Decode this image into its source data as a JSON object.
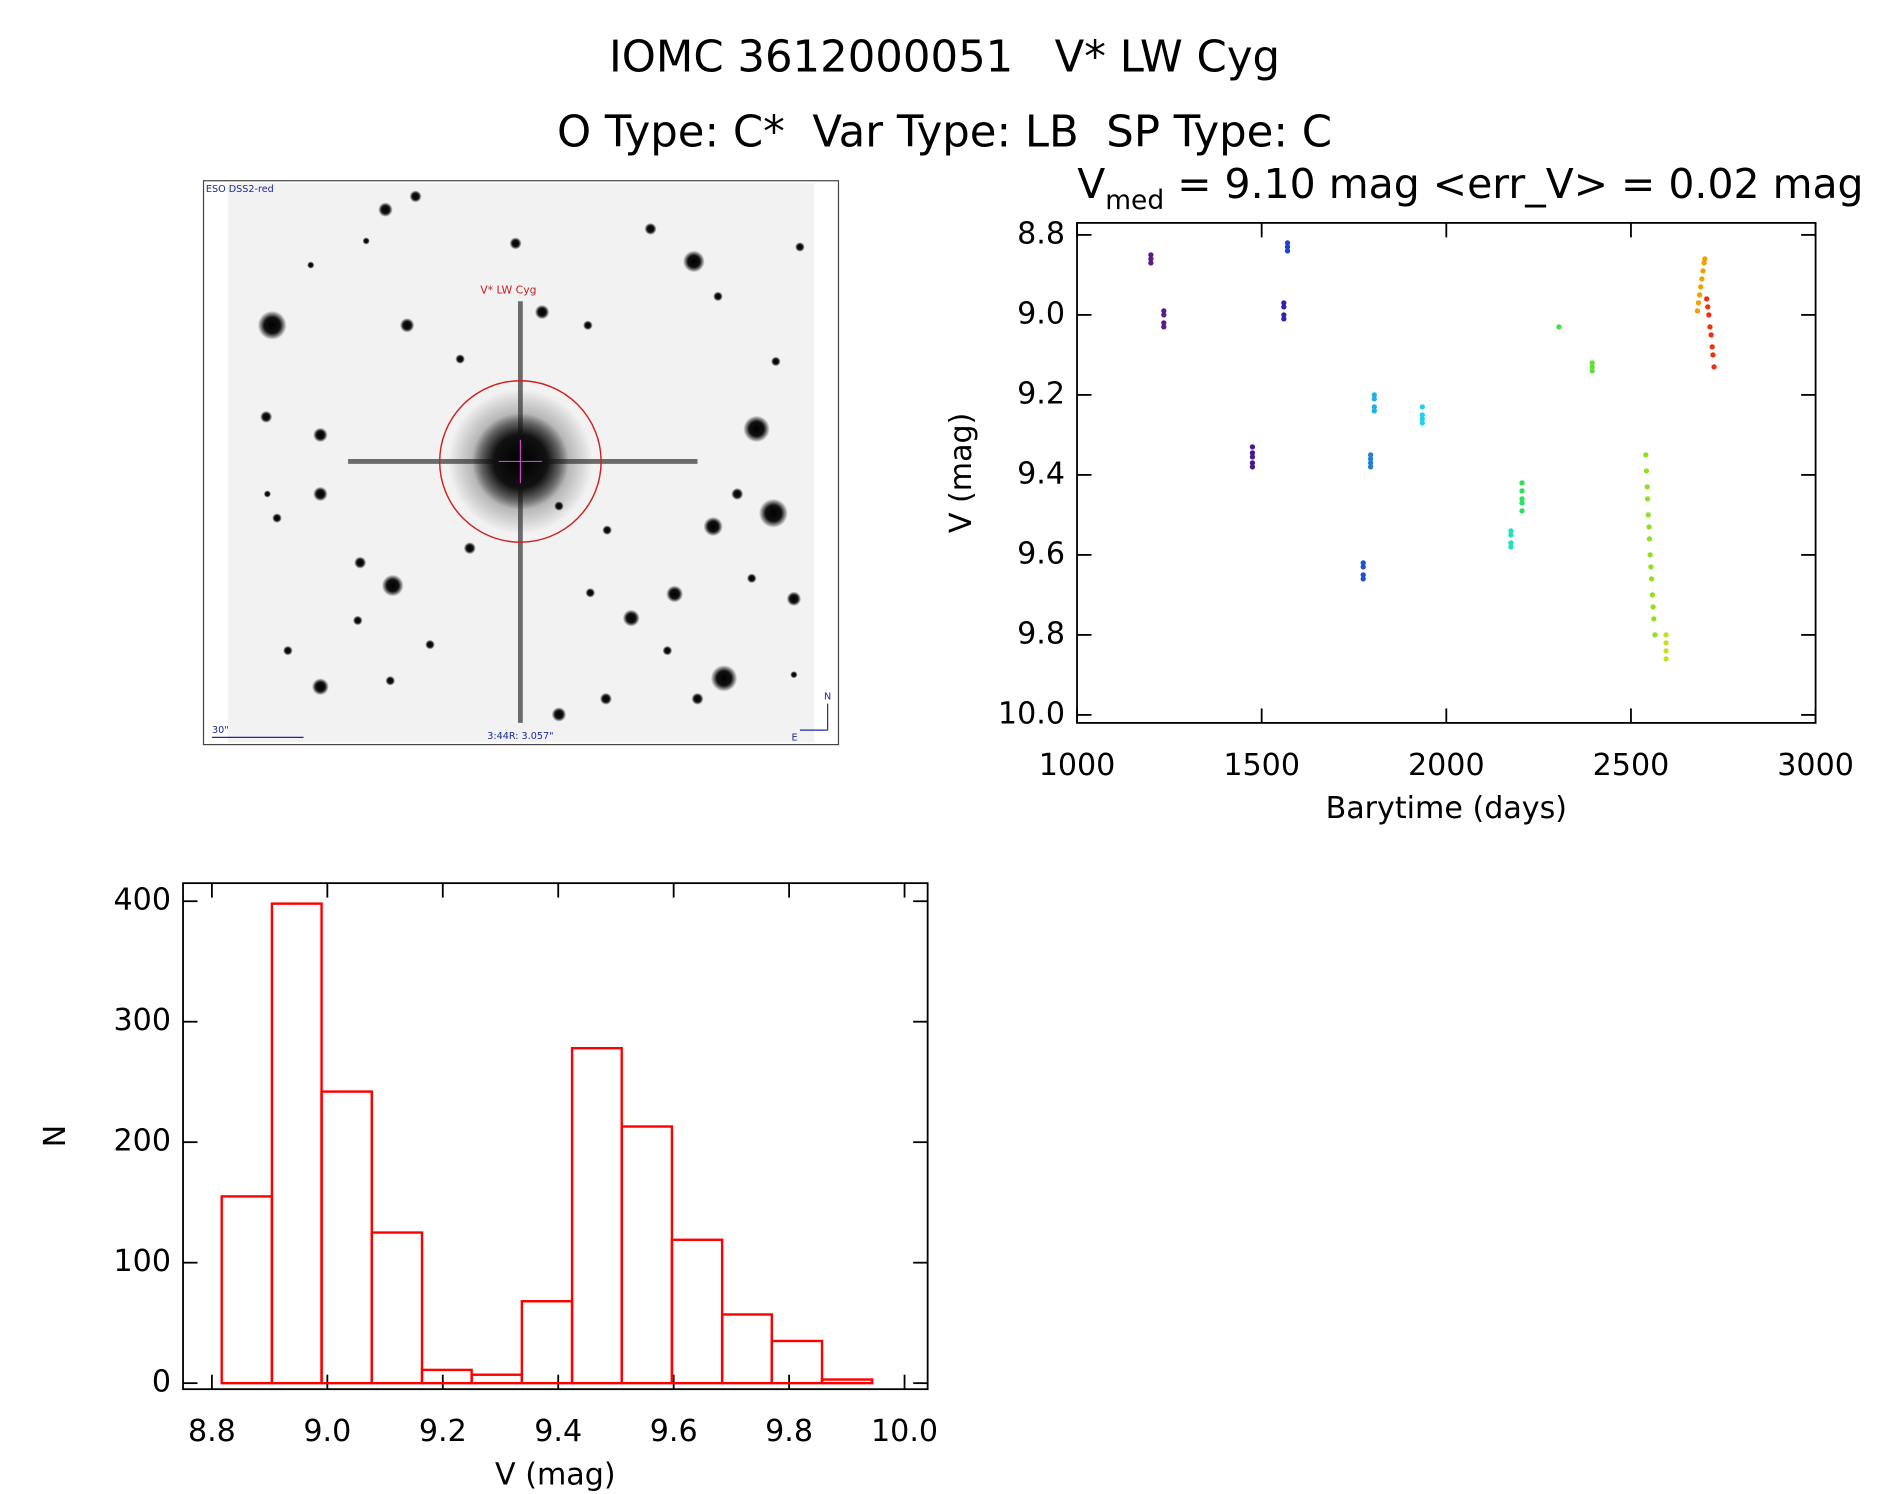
{
  "title": "IOMC 3612000051   V* LW Cyg",
  "subtitle": "O Type: C*  Var Type: LB  SP Type: C",
  "image": {
    "source": "ESO DSS2-red",
    "target": "V* LW Cyg",
    "scale": "30\"",
    "coords": "3:44R: 3.057\"",
    "north": "N",
    "east": "E"
  },
  "chart_data": [
    {
      "type": "scatter",
      "title": [
        "V",
        "med",
        " = 9.10 mag <err_V> = 0.02 mag"
      ],
      "xlabel": "Barytime (days)",
      "ylabel": "V (mag)",
      "xlim": [
        1000,
        3000
      ],
      "xticks": [
        1000,
        1500,
        2000,
        2500,
        3000
      ],
      "ylim": [
        8.77,
        10.02
      ],
      "y_inverted": true,
      "yticks": [
        8.8,
        {
          "value": 9,
          "label": "9.0"
        },
        9.2,
        9.4,
        9.6,
        9.8,
        {
          "value": 10,
          "label": "10.0"
        }
      ],
      "series": [
        {
          "color": "#5a1a8a",
          "x": [
            1200,
            1200,
            1200
          ],
          "values": [
            8.85,
            8.86,
            8.87
          ]
        },
        {
          "color": "#5a1a8a",
          "x": [
            1235,
            1235,
            1235,
            1235
          ],
          "values": [
            8.99,
            9.0,
            9.02,
            9.03
          ]
        },
        {
          "color": "#4a1890",
          "x": [
            1475,
            1475,
            1475,
            1475,
            1475
          ],
          "values": [
            9.33,
            9.345,
            9.355,
            9.37,
            9.38
          ]
        },
        {
          "color": "#3a20b0",
          "x": [
            1560,
            1560,
            1560,
            1560
          ],
          "values": [
            8.97,
            8.98,
            9.0,
            9.01
          ]
        },
        {
          "color": "#2040d0",
          "x": [
            1570,
            1570,
            1570
          ],
          "values": [
            8.82,
            8.83,
            8.84
          ]
        },
        {
          "color": "#2050d0",
          "x": [
            1775,
            1775,
            1775,
            1775
          ],
          "values": [
            9.62,
            9.63,
            9.65,
            9.66
          ]
        },
        {
          "color": "#2080d8",
          "x": [
            1795,
            1795,
            1795,
            1795
          ],
          "values": [
            9.35,
            9.36,
            9.37,
            9.38
          ]
        },
        {
          "color": "#20b0e0",
          "x": [
            1805,
            1805,
            1805,
            1805
          ],
          "values": [
            9.2,
            9.21,
            9.23,
            9.24
          ]
        },
        {
          "color": "#20d0f0",
          "x": [
            1935,
            1935,
            1935,
            1935
          ],
          "values": [
            9.23,
            9.25,
            9.26,
            9.27
          ]
        },
        {
          "color": "#20e0c0",
          "x": [
            2175,
            2175,
            2175,
            2175
          ],
          "values": [
            9.54,
            9.55,
            9.57,
            9.58
          ]
        },
        {
          "color": "#30e060",
          "x": [
            2205,
            2205,
            2205,
            2205,
            2205
          ],
          "values": [
            9.42,
            9.44,
            9.46,
            9.47,
            9.49
          ]
        },
        {
          "color": "#40e040",
          "x": [
            2305
          ],
          "values": [
            9.03
          ]
        },
        {
          "color": "#60e030",
          "x": [
            2395,
            2395,
            2395
          ],
          "values": [
            9.12,
            9.13,
            9.14
          ]
        },
        {
          "color": "#90e020",
          "x": [
            2540,
            2542,
            2544,
            2545,
            2547,
            2549,
            2550,
            2552,
            2554,
            2556,
            2558,
            2560,
            2562,
            2565
          ],
          "values": [
            9.35,
            9.39,
            9.43,
            9.46,
            9.5,
            9.53,
            9.56,
            9.6,
            9.63,
            9.66,
            9.7,
            9.73,
            9.76,
            9.8
          ]
        },
        {
          "color": "#c8e020",
          "x": [
            2595,
            2595,
            2595,
            2595
          ],
          "values": [
            9.8,
            9.82,
            9.84,
            9.86
          ]
        },
        {
          "color": "#f0a000",
          "x": [
            2680,
            2683,
            2686,
            2689,
            2692,
            2695,
            2698,
            2700
          ],
          "values": [
            8.99,
            8.97,
            8.95,
            8.93,
            8.91,
            8.89,
            8.87,
            8.86
          ]
        },
        {
          "color": "#f03010",
          "x": [
            2705,
            2708,
            2711,
            2714,
            2717,
            2720,
            2722,
            2725
          ],
          "values": [
            8.96,
            8.98,
            9.0,
            9.03,
            9.05,
            9.08,
            9.1,
            9.13
          ]
        }
      ]
    },
    {
      "type": "histogram",
      "xlabel": "V (mag)",
      "ylabel": "N",
      "xlim": [
        8.75,
        10.04
      ],
      "xticks": [
        8.8,
        {
          "value": 9,
          "label": "9.0"
        },
        9.2,
        9.4,
        9.6,
        9.8,
        {
          "value": 10,
          "label": "10.0"
        }
      ],
      "ylim": [
        -5,
        415
      ],
      "yticks": [
        0,
        100,
        200,
        300,
        400
      ],
      "color": "#ff0000",
      "bins": [
        8.817,
        8.904,
        8.99,
        9.077,
        9.164,
        9.25,
        9.337,
        9.424,
        9.51,
        9.597,
        9.684,
        9.77,
        9.857,
        9.944
      ],
      "values": [
        155,
        398,
        242,
        125,
        11,
        7,
        68,
        278,
        213,
        119,
        57,
        35,
        3
      ]
    }
  ]
}
